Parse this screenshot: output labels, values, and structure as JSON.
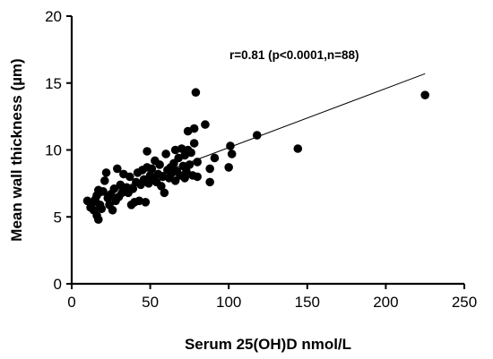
{
  "chart_data": {
    "type": "scatter",
    "title": "",
    "xlabel": "Serum 25(OH)D nmol/L",
    "ylabel": "Mean wall thickness (µm)",
    "xlim": [
      0,
      250
    ],
    "ylim": [
      0,
      20
    ],
    "x_ticks": [
      0,
      50,
      100,
      150,
      200,
      250
    ],
    "y_ticks": [
      0,
      5,
      10,
      15,
      20
    ],
    "x_tick_labels": [
      "0",
      "50",
      "100",
      "150",
      "200",
      "250"
    ],
    "y_tick_labels": [
      "0",
      "5",
      "10",
      "15",
      "20"
    ],
    "grid": false,
    "annotation": "r=0.81 (p<0.0001,n=88)",
    "trendline": {
      "x": [
        10,
        225
      ],
      "y": [
        6.2,
        15.7
      ]
    },
    "points": [
      {
        "x": 10,
        "y": 6.2
      },
      {
        "x": 12,
        "y": 5.7
      },
      {
        "x": 13,
        "y": 6.0
      },
      {
        "x": 14,
        "y": 5.5
      },
      {
        "x": 15,
        "y": 6.3
      },
      {
        "x": 16,
        "y": 6.6
      },
      {
        "x": 16,
        "y": 5.1
      },
      {
        "x": 17,
        "y": 4.8
      },
      {
        "x": 17,
        "y": 7.0
      },
      {
        "x": 18,
        "y": 5.9
      },
      {
        "x": 19,
        "y": 5.6
      },
      {
        "x": 20,
        "y": 6.9
      },
      {
        "x": 21,
        "y": 7.7
      },
      {
        "x": 22,
        "y": 8.3
      },
      {
        "x": 23,
        "y": 6.4
      },
      {
        "x": 24,
        "y": 5.9
      },
      {
        "x": 25,
        "y": 6.7
      },
      {
        "x": 26,
        "y": 5.5
      },
      {
        "x": 27,
        "y": 7.1
      },
      {
        "x": 28,
        "y": 6.2
      },
      {
        "x": 29,
        "y": 8.6
      },
      {
        "x": 30,
        "y": 6.5
      },
      {
        "x": 31,
        "y": 7.4
      },
      {
        "x": 32,
        "y": 6.8
      },
      {
        "x": 33,
        "y": 8.2
      },
      {
        "x": 34,
        "y": 6.9
      },
      {
        "x": 35,
        "y": 7.2
      },
      {
        "x": 36,
        "y": 6.8
      },
      {
        "x": 37,
        "y": 8.0
      },
      {
        "x": 38,
        "y": 5.9
      },
      {
        "x": 39,
        "y": 7.1
      },
      {
        "x": 40,
        "y": 6.1
      },
      {
        "x": 41,
        "y": 7.6
      },
      {
        "x": 42,
        "y": 8.3
      },
      {
        "x": 43,
        "y": 6.2
      },
      {
        "x": 44,
        "y": 7.4
      },
      {
        "x": 45,
        "y": 8.5
      },
      {
        "x": 46,
        "y": 7.8
      },
      {
        "x": 47,
        "y": 6.1
      },
      {
        "x": 48,
        "y": 8.7
      },
      {
        "x": 48,
        "y": 9.9
      },
      {
        "x": 49,
        "y": 7.5
      },
      {
        "x": 50,
        "y": 8.1
      },
      {
        "x": 51,
        "y": 8.6
      },
      {
        "x": 52,
        "y": 7.8
      },
      {
        "x": 53,
        "y": 9.2
      },
      {
        "x": 54,
        "y": 7.6
      },
      {
        "x": 55,
        "y": 8.2
      },
      {
        "x": 56,
        "y": 8.9
      },
      {
        "x": 57,
        "y": 7.3
      },
      {
        "x": 58,
        "y": 8.0
      },
      {
        "x": 59,
        "y": 6.8
      },
      {
        "x": 60,
        "y": 9.7
      },
      {
        "x": 61,
        "y": 8.5
      },
      {
        "x": 62,
        "y": 7.9
      },
      {
        "x": 63,
        "y": 8.7
      },
      {
        "x": 64,
        "y": 8.3
      },
      {
        "x": 65,
        "y": 9.0
      },
      {
        "x": 66,
        "y": 7.7
      },
      {
        "x": 67,
        "y": 8.4
      },
      {
        "x": 68,
        "y": 9.4
      },
      {
        "x": 69,
        "y": 8.1
      },
      {
        "x": 70,
        "y": 10.1
      },
      {
        "x": 71,
        "y": 8.8
      },
      {
        "x": 72,
        "y": 7.9
      },
      {
        "x": 72,
        "y": 9.6
      },
      {
        "x": 73,
        "y": 8.4
      },
      {
        "x": 74,
        "y": 10.0
      },
      {
        "x": 74,
        "y": 11.4
      },
      {
        "x": 75,
        "y": 8.9
      },
      {
        "x": 76,
        "y": 9.8
      },
      {
        "x": 77,
        "y": 8.1
      },
      {
        "x": 78,
        "y": 10.5
      },
      {
        "x": 78,
        "y": 11.6
      },
      {
        "x": 79,
        "y": 14.3
      },
      {
        "x": 80,
        "y": 9.1
      },
      {
        "x": 80,
        "y": 8.0
      },
      {
        "x": 85,
        "y": 11.9
      },
      {
        "x": 88,
        "y": 8.6
      },
      {
        "x": 88,
        "y": 7.6
      },
      {
        "x": 91,
        "y": 9.4
      },
      {
        "x": 100,
        "y": 8.7
      },
      {
        "x": 101,
        "y": 10.3
      },
      {
        "x": 102,
        "y": 9.7
      },
      {
        "x": 118,
        "y": 11.1
      },
      {
        "x": 144,
        "y": 10.1
      },
      {
        "x": 225,
        "y": 14.1
      },
      {
        "x": 66,
        "y": 10.0
      }
    ]
  }
}
